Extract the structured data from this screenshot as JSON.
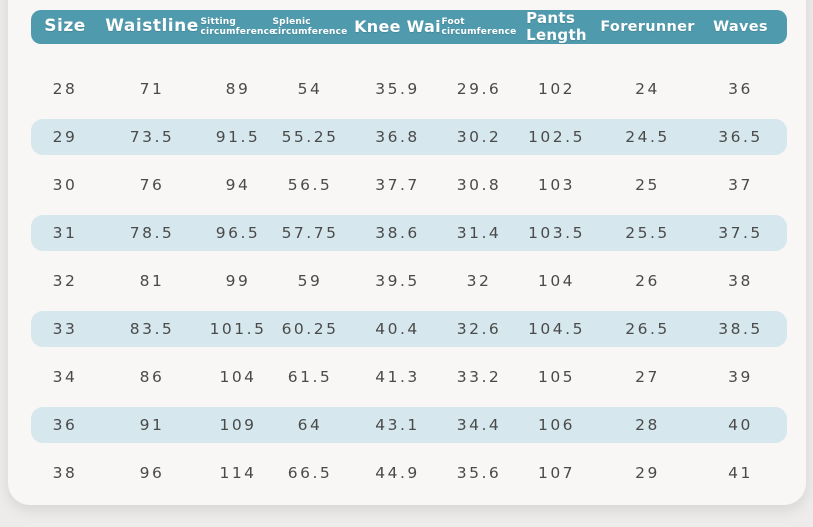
{
  "chart_data": {
    "type": "table",
    "columns": [
      {
        "id": "size",
        "lines": [
          "Size"
        ],
        "style": "lg"
      },
      {
        "id": "waistline",
        "lines": [
          "Waistline"
        ],
        "style": "lg"
      },
      {
        "id": "sitting-circumference",
        "lines": [
          "Sitting",
          "circumference"
        ],
        "style": "sm"
      },
      {
        "id": "splenic-circumference",
        "lines": [
          "Splenic",
          "circumference"
        ],
        "style": "sm"
      },
      {
        "id": "knee-wai",
        "lines": [
          "Knee Wai"
        ],
        "style": "md"
      },
      {
        "id": "foot-circumference",
        "lines": [
          "Foot",
          "circumference"
        ],
        "style": "sm"
      },
      {
        "id": "pants-length",
        "lines": [
          "Pants",
          "Length"
        ],
        "style": "md2"
      },
      {
        "id": "forerunner",
        "lines": [
          "Forerunner"
        ],
        "style": "md3"
      },
      {
        "id": "waves",
        "lines": [
          "Waves"
        ],
        "style": "md3"
      }
    ],
    "rows": [
      [
        "28",
        "71",
        "89",
        "54",
        "35.9",
        "29.6",
        "102",
        "24",
        "36"
      ],
      [
        "29",
        "73.5",
        "91.5",
        "55.25",
        "36.8",
        "30.2",
        "102.5",
        "24.5",
        "36.5"
      ],
      [
        "30",
        "76",
        "94",
        "56.5",
        "37.7",
        "30.8",
        "103",
        "25",
        "37"
      ],
      [
        "31",
        "78.5",
        "96.5",
        "57.75",
        "38.6",
        "31.4",
        "103.5",
        "25.5",
        "37.5"
      ],
      [
        "32",
        "81",
        "99",
        "59",
        "39.5",
        "32",
        "104",
        "26",
        "38"
      ],
      [
        "33",
        "83.5",
        "101.5",
        "60.25",
        "40.4",
        "32.6",
        "104.5",
        "26.5",
        "38.5"
      ],
      [
        "34",
        "86",
        "104",
        "61.5",
        "41.3",
        "33.2",
        "105",
        "27",
        "39"
      ],
      [
        "36",
        "91",
        "109",
        "64",
        "43.1",
        "34.4",
        "106",
        "28",
        "40"
      ],
      [
        "38",
        "96",
        "114",
        "66.5",
        "44.9",
        "35.6",
        "107",
        "29",
        "41"
      ]
    ]
  },
  "colors": {
    "header_bg": "#4f9aad",
    "header_text": "#ffffff",
    "row_alt_bg": "#d6e8ee",
    "cell_text": "#4a4a4a",
    "card_bg": "#f8f7f5",
    "page_bg": "#edeceb"
  }
}
